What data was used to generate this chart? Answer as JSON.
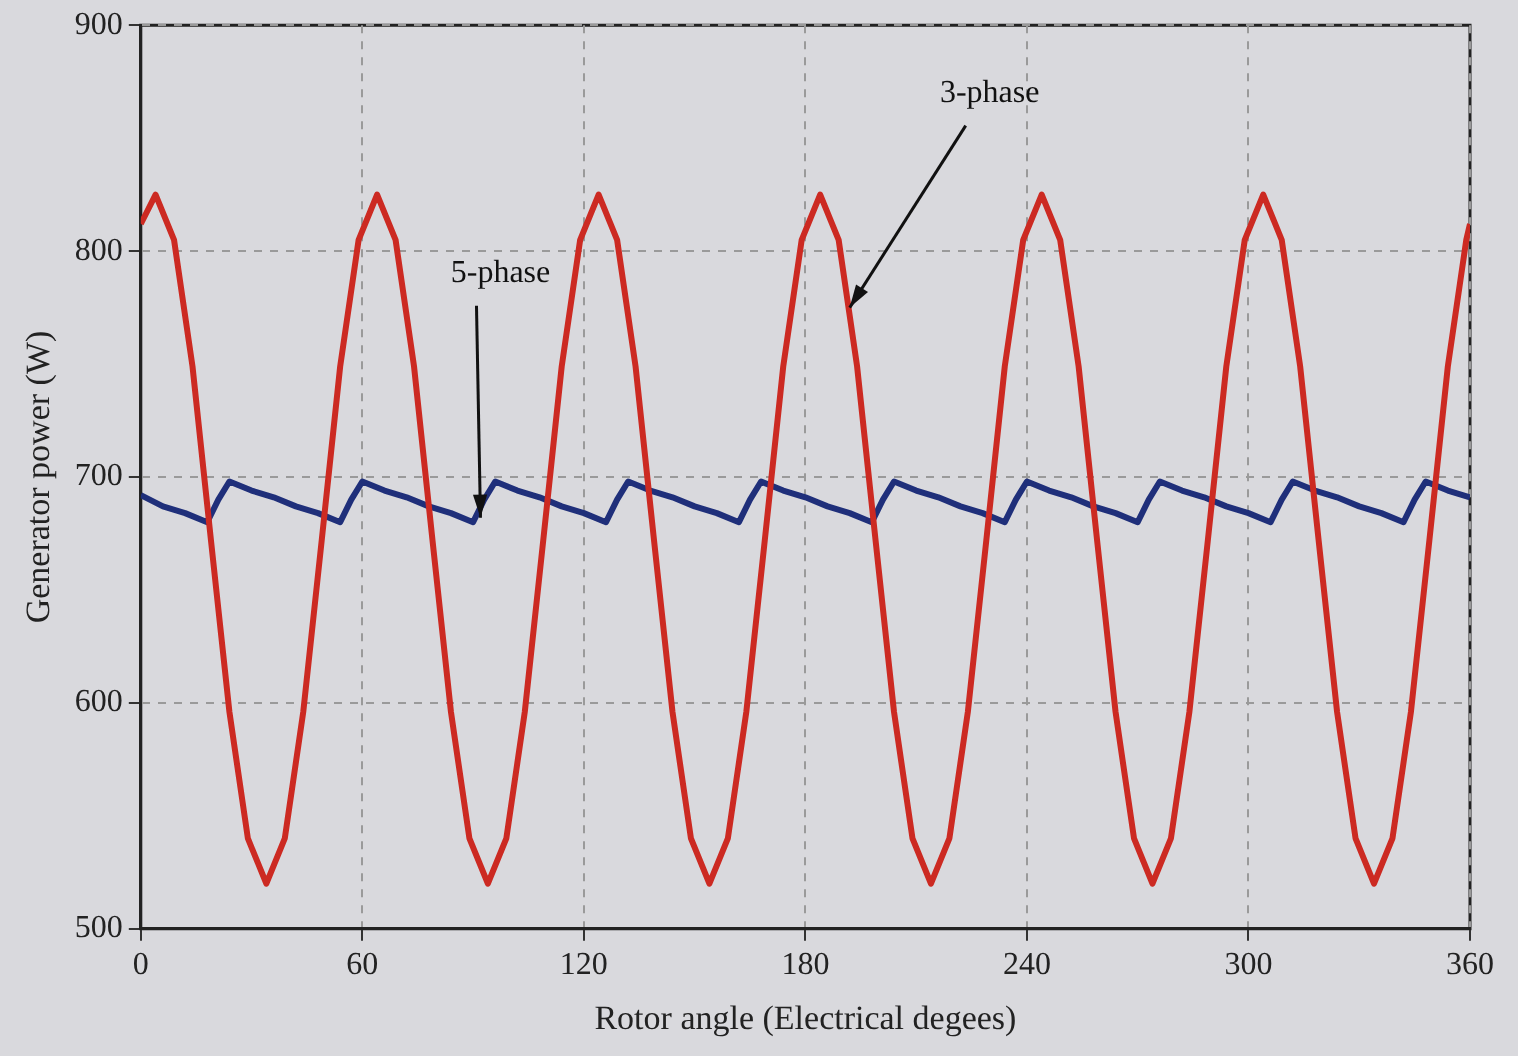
{
  "chart_data": {
    "type": "line",
    "xlabel": "Rotor angle (Electrical degees)",
    "ylabel": "Generator power (W)",
    "xlim": [
      0,
      360
    ],
    "xticks": [
      0,
      60,
      120,
      180,
      240,
      300,
      360
    ],
    "ylim": [
      500,
      900
    ],
    "yticks": [
      500,
      600,
      700,
      800,
      900
    ],
    "grid": true,
    "legend": false,
    "marker": "none",
    "line_style": "solid",
    "series": [
      {
        "color": "#cc2a22",
        "x": [
          0,
          4,
          9,
          14,
          19,
          24,
          29,
          34,
          39,
          44,
          49,
          54,
          59,
          64,
          69,
          74,
          79,
          84,
          89,
          94,
          99,
          104,
          109,
          114,
          119,
          124,
          129,
          134,
          139,
          144,
          149,
          154,
          159,
          164,
          169,
          174,
          179,
          184,
          189,
          194,
          199,
          204,
          209,
          214,
          219,
          224,
          229,
          234,
          239,
          244,
          249,
          254,
          259,
          264,
          269,
          274,
          279,
          284,
          289,
          294,
          299,
          304,
          309,
          314,
          319,
          324,
          329,
          334,
          339,
          344,
          349,
          354,
          359,
          360
        ],
        "values": [
          812,
          825,
          805,
          749,
          672,
          596,
          540,
          520,
          540,
          596,
          672,
          749,
          805,
          825,
          805,
          749,
          672,
          596,
          540,
          520,
          540,
          596,
          672,
          749,
          805,
          825,
          805,
          749,
          672,
          596,
          540,
          520,
          540,
          596,
          672,
          749,
          805,
          825,
          805,
          749,
          672,
          596,
          540,
          520,
          540,
          596,
          672,
          749,
          805,
          825,
          805,
          749,
          672,
          596,
          540,
          520,
          540,
          596,
          672,
          749,
          805,
          825,
          805,
          749,
          672,
          596,
          540,
          520,
          540,
          596,
          672,
          749,
          805,
          812
        ]
      },
      {
        "color": "#1f2f7a",
        "x": [
          0,
          6,
          12,
          18,
          21,
          24,
          30,
          36,
          42,
          48,
          54,
          57,
          60,
          66,
          72,
          78,
          84,
          90,
          93,
          96,
          102,
          108,
          114,
          120,
          126,
          129,
          132,
          138,
          144,
          150,
          156,
          162,
          165,
          168,
          174,
          180,
          186,
          192,
          198,
          201,
          204,
          210,
          216,
          222,
          228,
          234,
          237,
          240,
          246,
          252,
          258,
          264,
          270,
          273,
          276,
          282,
          288,
          294,
          300,
          306,
          309,
          312,
          318,
          324,
          330,
          336,
          342,
          345,
          348,
          354,
          360
        ],
        "values": [
          692,
          687,
          684,
          680,
          690,
          698,
          694,
          691,
          687,
          684,
          680,
          690,
          698,
          694,
          691,
          687,
          684,
          680,
          690,
          698,
          694,
          691,
          687,
          684,
          680,
          690,
          698,
          694,
          691,
          687,
          684,
          680,
          690,
          698,
          694,
          691,
          687,
          684,
          680,
          690,
          698,
          694,
          691,
          687,
          684,
          680,
          690,
          698,
          694,
          691,
          687,
          684,
          680,
          690,
          698,
          694,
          691,
          687,
          684,
          680,
          690,
          698,
          694,
          691,
          687,
          684,
          680,
          690,
          698,
          694,
          691
        ]
      }
    ],
    "annotations": [
      {
        "text": "5-phase",
        "x": 92,
        "y": 682
      },
      {
        "text": "3-phase",
        "x": 192,
        "y": 775
      }
    ]
  }
}
